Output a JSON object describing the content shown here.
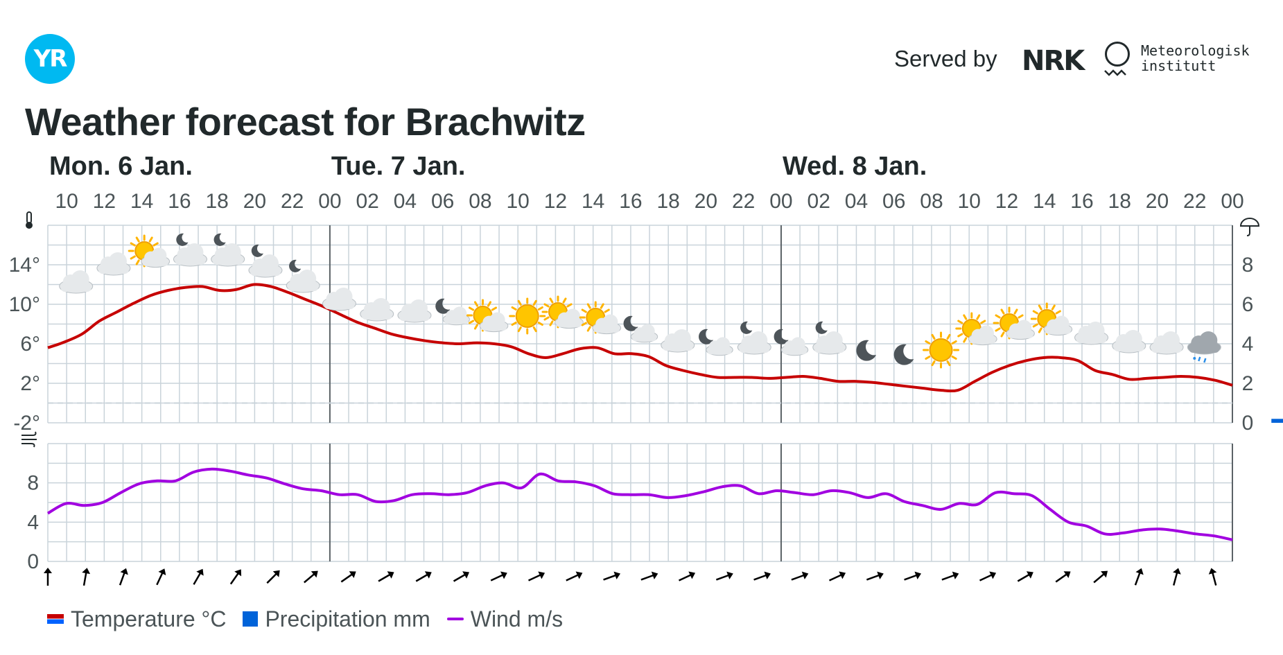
{
  "header": {
    "logo_text": "YR",
    "served_by": "Served by",
    "nrk_logo_text": "NRK",
    "met_logo_text": "Meteorologisk institutt",
    "title": "Weather forecast for Brachwitz"
  },
  "legend": {
    "temperature": "Temperature °C",
    "precipitation": "Precipitation mm",
    "wind": "Wind m/s"
  },
  "colors": {
    "temperature": "#c60000",
    "precipitation": "#0063d9",
    "wind": "#a100e0",
    "grid": "#c9d3da",
    "day_separator": "#5b6266",
    "zero_line": "#c9d3da",
    "text": "#21292b",
    "axis_text": "#4b5457",
    "brand": "#00b9f1"
  },
  "chart_data": [
    {
      "type": "line",
      "title": "",
      "time_range": [
        "Mon 6 Jan 09:00",
        "Thu 9 Jan 00:00"
      ],
      "day_labels": [
        "Mon. 6 Jan.",
        "Tue. 7 Jan.",
        "Wed. 8 Jan."
      ],
      "hour_ticks": [
        "10",
        "12",
        "14",
        "16",
        "18",
        "20",
        "22",
        "00",
        "02",
        "04",
        "06",
        "08",
        "10",
        "12",
        "14",
        "16",
        "18",
        "20",
        "22",
        "00",
        "02",
        "04",
        "06",
        "08",
        "10",
        "12",
        "14",
        "16",
        "18",
        "20",
        "22",
        "00"
      ],
      "y_left": {
        "ticks": [
          "14°",
          "10°",
          "6°",
          "2°",
          "-2°"
        ],
        "range": [
          -2,
          18
        ],
        "zero_line": 0
      },
      "y_right": {
        "ticks": [
          "8",
          "6",
          "4",
          "2",
          "0"
        ],
        "range": [
          0,
          10
        ],
        "unit": "mm"
      },
      "series": [
        {
          "name": "Temperature °C",
          "values": [
            5.6,
            6.2,
            7.0,
            8.3,
            9.2,
            10.1,
            10.9,
            11.4,
            11.7,
            11.8,
            11.4,
            11.5,
            12.0,
            11.8,
            11.2,
            10.5,
            9.8,
            9.0,
            8.2,
            7.6,
            7.0,
            6.6,
            6.3,
            6.1,
            6.0,
            6.1,
            6.0,
            5.7,
            5.0,
            4.6,
            5.0,
            5.5,
            5.6,
            5.0,
            5.0,
            4.7,
            3.8,
            3.3,
            2.9,
            2.6,
            2.6,
            2.6,
            2.5,
            2.6,
            2.7,
            2.5,
            2.2,
            2.2,
            2.1,
            1.9,
            1.7,
            1.5,
            1.3,
            1.3,
            2.2,
            3.1,
            3.8,
            4.3,
            4.6,
            4.6,
            4.3,
            3.3,
            2.9,
            2.4,
            2.5,
            2.6,
            2.7,
            2.6,
            2.3,
            1.8
          ]
        },
        {
          "name": "Precipitation mm",
          "bars": [
            0,
            0,
            0,
            0,
            0,
            0,
            0,
            0,
            0,
            0,
            0,
            0,
            0,
            0,
            0,
            0,
            0,
            0,
            0,
            0,
            0,
            0,
            0,
            0,
            0,
            0,
            0,
            0,
            0,
            0,
            0,
            0,
            0,
            0,
            0,
            0,
            0,
            0,
            0,
            0,
            0,
            0,
            0,
            0,
            0,
            0,
            0,
            0,
            0,
            0,
            0,
            0,
            0,
            0,
            0,
            0,
            0,
            0,
            0,
            0,
            0,
            0,
            0,
            0,
            0,
            0.2,
            0.3
          ]
        }
      ],
      "weather_symbols": [
        "cloudy",
        "cloudy",
        "partlycloudy_day",
        "cloudy_night",
        "cloudy_night",
        "cloudy_night",
        "cloudy_night",
        "cloudy",
        "cloudy",
        "cloudy",
        "partlycloudy_night",
        "partlycloudy_day",
        "clearsky_day",
        "partlycloudy_day",
        "partlycloudy_day",
        "partlycloudy_night",
        "cloudy",
        "partlycloudy_night",
        "cloudy_night",
        "partlycloudy_night",
        "cloudy_night",
        "clearsky_night",
        "clearsky_night",
        "clearsky_day",
        "partlycloudy_day",
        "partlycloudy_day",
        "partlycloudy_day",
        "cloudy",
        "cloudy",
        "cloudy",
        "sleet"
      ]
    },
    {
      "type": "line",
      "y": {
        "ticks": [
          "8",
          "4",
          "0"
        ],
        "range": [
          0,
          12
        ]
      },
      "series": [
        {
          "name": "Wind m/s",
          "values": [
            4.9,
            5.9,
            5.7,
            6.0,
            7.0,
            7.9,
            8.2,
            8.2,
            9.1,
            9.4,
            9.2,
            8.8,
            8.5,
            7.9,
            7.4,
            7.2,
            6.8,
            6.8,
            6.1,
            6.2,
            6.8,
            6.9,
            6.8,
            7.0,
            7.7,
            8.0,
            7.5,
            8.9,
            8.2,
            8.1,
            7.7,
            6.9,
            6.8,
            6.8,
            6.5,
            6.7,
            7.1,
            7.6,
            7.7,
            6.9,
            7.2,
            7.0,
            6.8,
            7.2,
            7.0,
            6.5,
            6.9,
            6.1,
            5.7,
            5.3,
            5.9,
            5.8,
            7.0,
            6.9,
            6.7,
            5.3,
            4.0,
            3.6,
            2.8,
            2.9,
            3.2,
            3.3,
            3.1,
            2.8,
            2.6,
            2.2
          ]
        }
      ],
      "wind_direction_degrees": [
        0,
        10,
        20,
        25,
        30,
        35,
        45,
        50,
        55,
        60,
        60,
        60,
        65,
        65,
        65,
        70,
        70,
        65,
        70,
        70,
        70,
        65,
        70,
        70,
        70,
        65,
        60,
        55,
        50,
        20,
        15,
        -15
      ]
    }
  ]
}
